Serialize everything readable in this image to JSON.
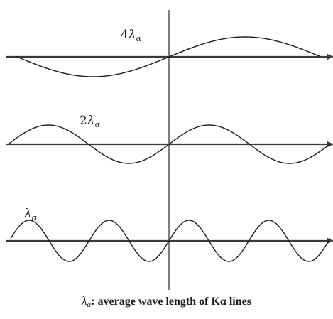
{
  "diagram": {
    "center_line": true,
    "waves": [
      {
        "label_prefix": "4",
        "label_symbol": "λ",
        "label_subscript": "α",
        "periods": 1,
        "phase": "sine"
      },
      {
        "label_prefix": "2",
        "label_symbol": "λ",
        "label_subscript": "α",
        "periods": 2,
        "phase": "sine"
      },
      {
        "label_prefix": "",
        "label_symbol": "λ",
        "label_subscript": "α",
        "periods": 4,
        "phase": "sine"
      }
    ]
  },
  "caption": {
    "symbol": "λ",
    "subscript": "α",
    "text": ": average wave length of Kα lines"
  },
  "colors": {
    "line": "#1c1c1c",
    "background": "#ffffff"
  }
}
